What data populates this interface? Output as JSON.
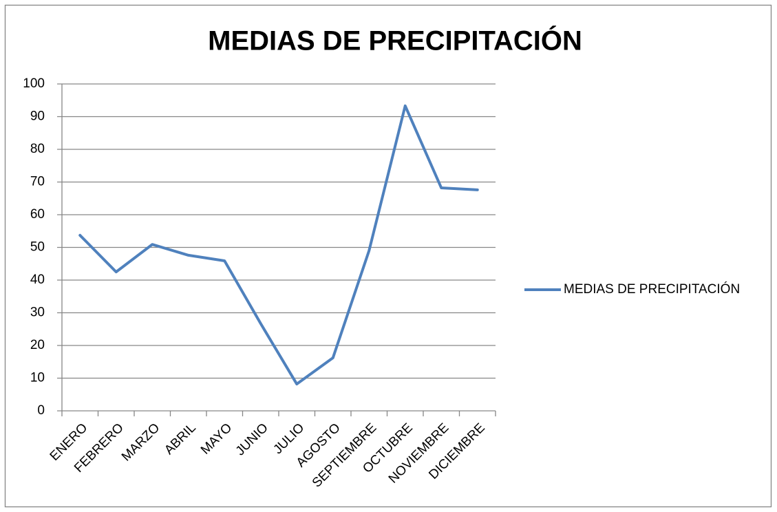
{
  "chart_data": {
    "type": "line",
    "title": "MEDIAS DE PRECIPITACIÓN",
    "categories": [
      "ENERO",
      "FEBRERO",
      "MARZO",
      "ABRIL",
      "MAYO",
      "JUNIO",
      "JULIO",
      "AGOSTO",
      "SEPTIEMBRE",
      "OCTUBRE",
      "NOVIEMBRE",
      "DICIEMBRE"
    ],
    "series": [
      {
        "name": "MEDIAS DE PRECIPITACIÓN",
        "color": "#4f81bd",
        "values": [
          53.7,
          42.5,
          50.9,
          47.6,
          45.9,
          26.7,
          8.2,
          16.2,
          49,
          93.3,
          68.2,
          67.6
        ]
      }
    ],
    "ylim": [
      0,
      100
    ],
    "yticks": [
      0,
      10,
      20,
      30,
      40,
      50,
      60,
      70,
      80,
      90,
      100
    ],
    "grid": true,
    "legend": "right"
  }
}
